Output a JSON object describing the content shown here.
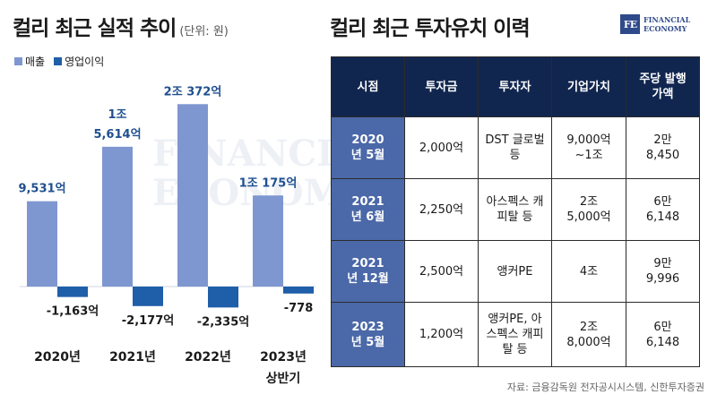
{
  "left_title": "컬리 최근 실적 추이",
  "left_unit": "(단위: 원)",
  "right_title": "컬리 최근 투자유치 이력",
  "logo": {
    "mark": "FE",
    "line1": "FINANCIAL",
    "line2": "ECONOMY"
  },
  "watermark": {
    "line1": "FINANCIAL",
    "line2": "ECONOMY"
  },
  "colors": {
    "revenue": "#7f97d0",
    "operating": "#1f5ea8",
    "header_bg": "#11264f",
    "date_bg": "#4b68a8"
  },
  "legend": [
    "매출",
    "영업이익"
  ],
  "chart_data": {
    "type": "bar",
    "categories": [
      "2020년",
      "2021년",
      "2022년",
      "2023년 상반기"
    ],
    "unit": "억원",
    "series": [
      {
        "name": "매출",
        "values": [
          9531,
          15614,
          20372,
          10175
        ],
        "labels": [
          "9,531억",
          "1조 5,614억",
          "2조 372억",
          "1조 175억"
        ]
      },
      {
        "name": "영업이익",
        "values": [
          -1163,
          -2177,
          -2335,
          -778
        ],
        "labels": [
          "-1,163억",
          "-2,177억",
          "-2,335억",
          "-778"
        ]
      }
    ]
  },
  "table": {
    "headers": [
      "시점",
      "투자금",
      "투자자",
      "기업가치",
      "주당 발행가액"
    ],
    "rows": [
      [
        "2020년 5월",
        "2,000억",
        "DST 글로벌 등",
        "9,000억 ~1조",
        "2만 8,450"
      ],
      [
        "2021년 6월",
        "2,250억",
        "아스펙스 캐피탈 등",
        "2조 5,000억",
        "6만 6,148"
      ],
      [
        "2021년 12월",
        "2,500억",
        "앵커PE",
        "4조",
        "9만 9,996"
      ],
      [
        "2023년 5월",
        "1,200억",
        "앵커PE, 아스펙스 캐피탈 등",
        "2조 8,000억",
        "6만 6,148"
      ]
    ]
  },
  "source": "자료: 금융감독원 전자공시시스템, 신한투자증권"
}
